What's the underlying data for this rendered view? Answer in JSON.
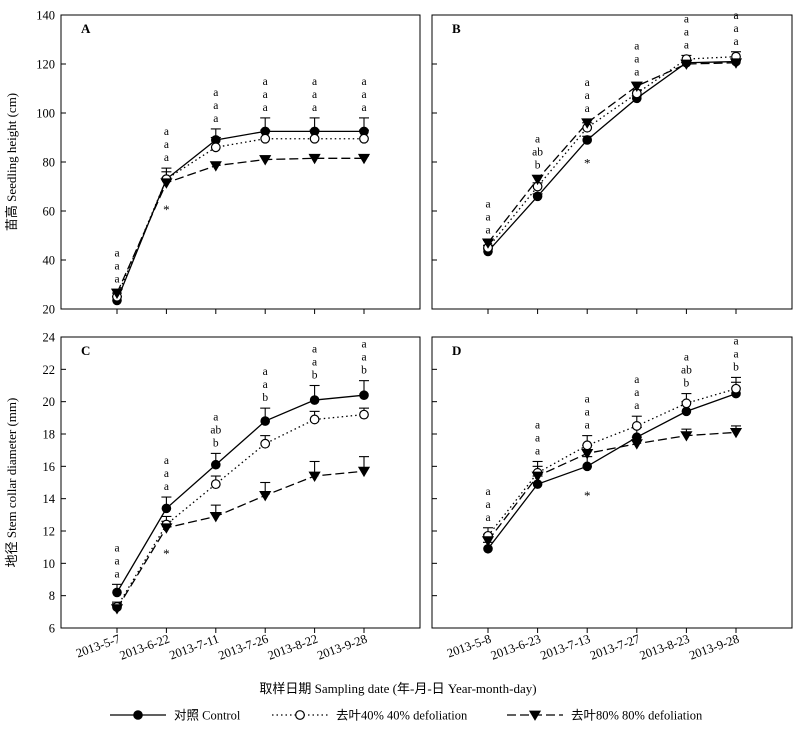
{
  "figure": {
    "xlabel": "取样日期  Sampling date (年-月-日 Year-month-day)",
    "legend": [
      {
        "name": "对照  Control",
        "marker": "filled-circle",
        "dash": "solid"
      },
      {
        "name": "去叶40%   40% defoliation",
        "marker": "open-circle",
        "dash": "dotted"
      },
      {
        "name": "去叶80%   80% defoliation",
        "marker": "filled-triangle-down",
        "dash": "dashed"
      }
    ],
    "legend_placement": "bottom",
    "colors": {
      "line": "#000000",
      "background": "#ffffff"
    }
  },
  "chart_data": [
    {
      "panel": "A",
      "type": "line",
      "ylabel": "苗高 Seedling height (cm)",
      "ylim": [
        20,
        140
      ],
      "yticks": [
        20,
        40,
        60,
        80,
        100,
        120,
        140
      ],
      "categories": [
        "2013-5-7",
        "2013-6-22",
        "2013-7-11",
        "2013-7-26",
        "2013-8-22",
        "2013-9-28"
      ],
      "series": [
        {
          "name": "对照  Control",
          "values": [
            23.5,
            73,
            89,
            92.5,
            92.5,
            92.5
          ],
          "errors": [
            1.5,
            4.5,
            4.5,
            5.5,
            5.5,
            5.5
          ]
        },
        {
          "name": "去叶40%   40% defoliation",
          "values": [
            25,
            73,
            86,
            89.5,
            89.5,
            89.5
          ],
          "errors": [
            1.5,
            3,
            4,
            3.5,
            3.5,
            3.5
          ]
        },
        {
          "name": "去叶80%   80% defoliation",
          "values": [
            26.5,
            71.5,
            78.5,
            81,
            81.5,
            81.5
          ],
          "errors": [
            1.5,
            2,
            1.5,
            1.5,
            1,
            1
          ]
        }
      ],
      "significance": [
        [
          "a",
          "a",
          "a"
        ],
        [
          "a",
          "a",
          "a"
        ],
        [
          "a",
          "a",
          "a"
        ],
        [
          "a",
          "a",
          "a"
        ],
        [
          "a",
          "a",
          "a"
        ],
        [
          "a",
          "a",
          "a"
        ]
      ],
      "stars": [
        "",
        "*",
        "",
        "",
        "",
        ""
      ]
    },
    {
      "panel": "B",
      "type": "line",
      "ylabel": "",
      "ylim": [
        20,
        140
      ],
      "yticks": [
        20,
        40,
        60,
        80,
        100,
        120,
        140
      ],
      "categories": [
        "2013-5-8",
        "2013-6-23",
        "2013-7-13",
        "2013-7-27",
        "2013-8-23",
        "2013-9-28"
      ],
      "series": [
        {
          "name": "对照  Control",
          "values": [
            43.5,
            66,
            89,
            106,
            120.5,
            121
          ],
          "errors": [
            1,
            1,
            1.5,
            1,
            1,
            1
          ]
        },
        {
          "name": "去叶40%   40% defoliation",
          "values": [
            45,
            70,
            94,
            108,
            122,
            123
          ],
          "errors": [
            1,
            1.5,
            2,
            1.5,
            1.5,
            2
          ]
        },
        {
          "name": "去叶80%   80% defoliation",
          "values": [
            47,
            73,
            96,
            111,
            120,
            120.5
          ],
          "errors": [
            1,
            1.5,
            1.5,
            1.5,
            1,
            1
          ]
        }
      ],
      "significance": [
        [
          "a",
          "a",
          "a"
        ],
        [
          "a",
          "ab",
          "b"
        ],
        [
          "a",
          "a",
          "a"
        ],
        [
          "a",
          "a",
          "a"
        ],
        [
          "a",
          "a",
          "a"
        ],
        [
          "a",
          "a",
          "a"
        ]
      ],
      "stars": [
        "",
        "",
        "*",
        "",
        "",
        ""
      ]
    },
    {
      "panel": "C",
      "type": "line",
      "ylabel": "地径 Stem collar diameter (mm)",
      "ylim": [
        6,
        24
      ],
      "yticks": [
        6,
        8,
        10,
        12,
        14,
        16,
        18,
        20,
        22,
        24
      ],
      "categories": [
        "2013-5-7",
        "2013-6-22",
        "2013-7-11",
        "2013-7-26",
        "2013-8-22",
        "2013-9-28"
      ],
      "series": [
        {
          "name": "对照  Control",
          "values": [
            8.2,
            13.4,
            16.1,
            18.8,
            20.1,
            20.4
          ],
          "errors": [
            0.5,
            0.7,
            0.7,
            0.8,
            0.9,
            0.9
          ]
        },
        {
          "name": "去叶40%   40% defoliation",
          "values": [
            7.3,
            12.4,
            14.9,
            17.4,
            18.9,
            19.2
          ],
          "errors": [
            0.3,
            0.5,
            0.5,
            0.5,
            0.5,
            0.4
          ]
        },
        {
          "name": "去叶80%   80% defoliation",
          "values": [
            7.2,
            12.2,
            12.9,
            14.2,
            15.4,
            15.7
          ],
          "errors": [
            0.3,
            0.4,
            0.7,
            0.8,
            0.9,
            0.9
          ]
        }
      ],
      "significance": [
        [
          "a",
          "a",
          "a"
        ],
        [
          "a",
          "a",
          "a"
        ],
        [
          "a",
          "ab",
          "b"
        ],
        [
          "a",
          "a",
          "b"
        ],
        [
          "a",
          "a",
          "b"
        ],
        [
          "a",
          "a",
          "b"
        ]
      ],
      "stars": [
        "",
        "*",
        "",
        "",
        "",
        ""
      ]
    },
    {
      "panel": "D",
      "type": "line",
      "ylabel": "",
      "ylim": [
        6,
        24
      ],
      "yticks": [
        6,
        8,
        10,
        12,
        14,
        16,
        18,
        20,
        22,
        24
      ],
      "categories": [
        "2013-5-8",
        "2013-6-23",
        "2013-7-13",
        "2013-7-27",
        "2013-8-23",
        "2013-9-28"
      ],
      "series": [
        {
          "name": "对照  Control",
          "values": [
            10.9,
            14.9,
            16,
            17.8,
            19.4,
            20.5
          ],
          "errors": [
            0.4,
            0.5,
            0.6,
            0.6,
            0.6,
            0.7
          ]
        },
        {
          "name": "去叶40%   40% defoliation",
          "values": [
            11.7,
            15.6,
            17.3,
            18.5,
            19.9,
            20.8
          ],
          "errors": [
            0.5,
            0.7,
            0.6,
            0.6,
            0.6,
            0.7
          ]
        },
        {
          "name": "去叶80%   80% defoliation",
          "values": [
            11.4,
            15.4,
            16.8,
            17.4,
            17.9,
            18.1
          ],
          "errors": [
            0.4,
            0.6,
            0.5,
            0.4,
            0.4,
            0.4
          ]
        }
      ],
      "significance": [
        [
          "a",
          "a",
          "a"
        ],
        [
          "a",
          "a",
          "a"
        ],
        [
          "a",
          "a",
          "a"
        ],
        [
          "a",
          "a",
          "a"
        ],
        [
          "a",
          "ab",
          "b"
        ],
        [
          "a",
          "a",
          "b"
        ]
      ],
      "stars": [
        "",
        "",
        "*",
        "",
        "",
        ""
      ]
    }
  ]
}
